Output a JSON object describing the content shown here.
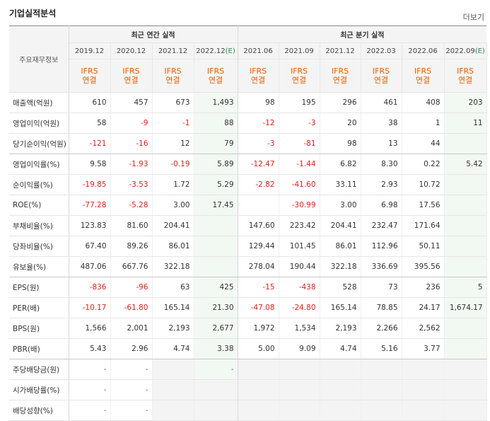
{
  "section_title": "기업실적분석",
  "more_link": "더보기",
  "corner_label": "주요재무정보",
  "groups": {
    "annual": "최근 연간 실적",
    "quarterly": "최근 분기 실적"
  },
  "periods": [
    "2019.12",
    "2020.12",
    "2021.12",
    "2022.12",
    "2021.06",
    "2021.09",
    "2021.12",
    "2022.03",
    "2022.06",
    "2022.09"
  ],
  "estimate_mark": "(E)",
  "ifrs": {
    "line1": "IFRS",
    "line2": "연결"
  },
  "rows": [
    {
      "label": "매출액(억원)",
      "values": [
        "610",
        "457",
        "673",
        "1,493",
        "98",
        "195",
        "296",
        "461",
        "408",
        "203"
      ]
    },
    {
      "label": "영업이익(억원)",
      "values": [
        "58",
        "-9",
        "-1",
        "88",
        "-12",
        "-3",
        "20",
        "38",
        "1",
        "11"
      ]
    },
    {
      "label": "당기순이익(억원)",
      "values": [
        "-121",
        "-16",
        "12",
        "79",
        "-3",
        "-81",
        "98",
        "13",
        "44",
        ""
      ]
    },
    {
      "label": "영업이익률(%)",
      "values": [
        "9.58",
        "-1.93",
        "-0.19",
        "5.89",
        "-12.47",
        "-1.44",
        "6.82",
        "8.30",
        "0.22",
        "5.42"
      ]
    },
    {
      "label": "순이익률(%)",
      "values": [
        "-19.85",
        "-3.53",
        "1.72",
        "5.29",
        "-2.82",
        "-41.60",
        "33.11",
        "2.93",
        "10.72",
        ""
      ]
    },
    {
      "label": "ROE(%)",
      "values": [
        "-77.28",
        "-5.28",
        "3.00",
        "17.45",
        "",
        "-30.99",
        "3.00",
        "6.98",
        "17.56",
        ""
      ]
    },
    {
      "label": "부채비율(%)",
      "values": [
        "123.83",
        "81.60",
        "204.41",
        "",
        "147.60",
        "223.42",
        "204.41",
        "232.47",
        "171.64",
        ""
      ]
    },
    {
      "label": "당좌비율(%)",
      "values": [
        "67.40",
        "89.26",
        "86.01",
        "",
        "129.44",
        "101.45",
        "86.01",
        "112.96",
        "50.11",
        ""
      ]
    },
    {
      "label": "유보율(%)",
      "values": [
        "487.06",
        "667.76",
        "322.18",
        "",
        "278.04",
        "190.44",
        "322.18",
        "336.69",
        "395.56",
        ""
      ]
    },
    {
      "label": "EPS(원)",
      "values": [
        "-836",
        "-96",
        "63",
        "425",
        "-15",
        "-438",
        "528",
        "73",
        "236",
        "5"
      ]
    },
    {
      "label": "PER(배)",
      "values": [
        "-10.17",
        "-61.80",
        "165.14",
        "21.30",
        "-47.08",
        "-24.80",
        "165.14",
        "78.85",
        "24.17",
        "1,674.17"
      ]
    },
    {
      "label": "BPS(원)",
      "values": [
        "1,566",
        "2,001",
        "2,193",
        "2,677",
        "1,972",
        "1,534",
        "2,193",
        "2,266",
        "2,562",
        ""
      ]
    },
    {
      "label": "PBR(배)",
      "values": [
        "5.43",
        "2.96",
        "4.74",
        "3.38",
        "5.00",
        "9.09",
        "4.74",
        "5.16",
        "3.77",
        ""
      ]
    },
    {
      "label": "주당배당금(원)",
      "values": [
        "-",
        "-",
        "",
        "-",
        "",
        "",
        "",
        "",
        "",
        ""
      ]
    },
    {
      "label": "시가배당률(%)",
      "values": [
        "-",
        "-",
        "",
        "",
        "",
        "",
        "",
        "",
        "",
        ""
      ]
    },
    {
      "label": "배당성향(%)",
      "values": [
        "-",
        "-",
        "",
        "",
        "",
        "",
        "",
        "",
        "",
        ""
      ]
    }
  ],
  "colors": {
    "negative": "#e02020",
    "ifrs": "#e65c00",
    "estimate": "#2e8b57"
  }
}
